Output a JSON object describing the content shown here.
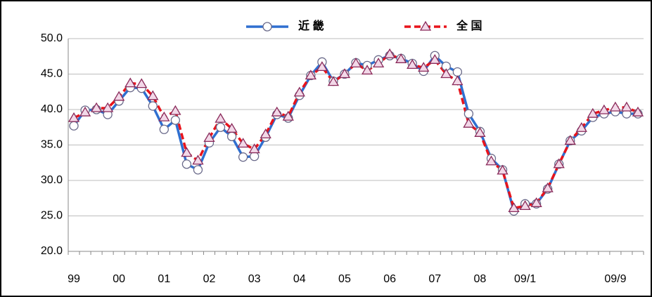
{
  "chart_data": {
    "type": "line",
    "categories": [
      "99",
      null,
      null,
      null,
      "00",
      null,
      null,
      null,
      "01",
      null,
      null,
      null,
      "02",
      null,
      null,
      null,
      "03",
      null,
      null,
      null,
      "04",
      null,
      null,
      null,
      "05",
      null,
      null,
      null,
      "06",
      null,
      null,
      null,
      "07",
      null,
      null,
      null,
      "08",
      null,
      null,
      null,
      "09/1",
      null,
      null,
      null,
      null,
      null,
      null,
      null,
      "09/9",
      null,
      null
    ],
    "series": [
      {
        "name": "近 畿",
        "color": "#2f6fd0",
        "marker": "circle",
        "values": [
          37.7,
          39.9,
          40.0,
          39.3,
          41.2,
          43.1,
          43.0,
          40.5,
          37.2,
          38.5,
          32.3,
          31.5,
          35.3,
          37.5,
          36.2,
          33.3,
          33.4,
          36.1,
          39.3,
          38.8,
          42.0,
          44.8,
          46.7,
          44.0,
          45.0,
          46.6,
          46.2,
          47.0,
          47.6,
          47.2,
          46.5,
          45.4,
          47.6,
          46.1,
          45.3,
          39.4,
          36.9,
          33.1,
          31.5,
          25.7,
          26.7,
          26.7,
          28.8,
          32.3,
          35.6,
          37.0,
          38.9,
          39.4,
          39.7,
          39.4,
          39.4
        ]
      },
      {
        "name": "全 国",
        "color": "#e8141c",
        "marker": "triangle",
        "dashed": true,
        "values": [
          38.8,
          39.6,
          40.2,
          40.2,
          41.8,
          43.7,
          43.6,
          41.9,
          38.9,
          39.8,
          33.9,
          32.8,
          36.0,
          38.7,
          37.3,
          35.2,
          34.4,
          36.5,
          39.6,
          39.0,
          42.4,
          44.8,
          46.0,
          43.9,
          45.0,
          46.5,
          45.5,
          46.5,
          47.8,
          47.1,
          46.3,
          45.9,
          47.0,
          45.0,
          44.0,
          38.0,
          36.7,
          32.7,
          31.4,
          26.1,
          26.4,
          26.8,
          28.9,
          32.3,
          35.6,
          37.4,
          39.4,
          39.9,
          40.3,
          40.3,
          39.6
        ]
      }
    ],
    "ylim": [
      20,
      50
    ],
    "yticks": [
      {
        "value": 20,
        "label": "20.0"
      },
      {
        "value": 25,
        "label": "25.0"
      },
      {
        "value": 30,
        "label": "30.0"
      },
      {
        "value": 35,
        "label": "35.0"
      },
      {
        "value": 40,
        "label": "40.0"
      },
      {
        "value": 45,
        "label": "45.0"
      },
      {
        "value": 50,
        "label": "50.0"
      }
    ],
    "grid": true,
    "legend": "top"
  }
}
